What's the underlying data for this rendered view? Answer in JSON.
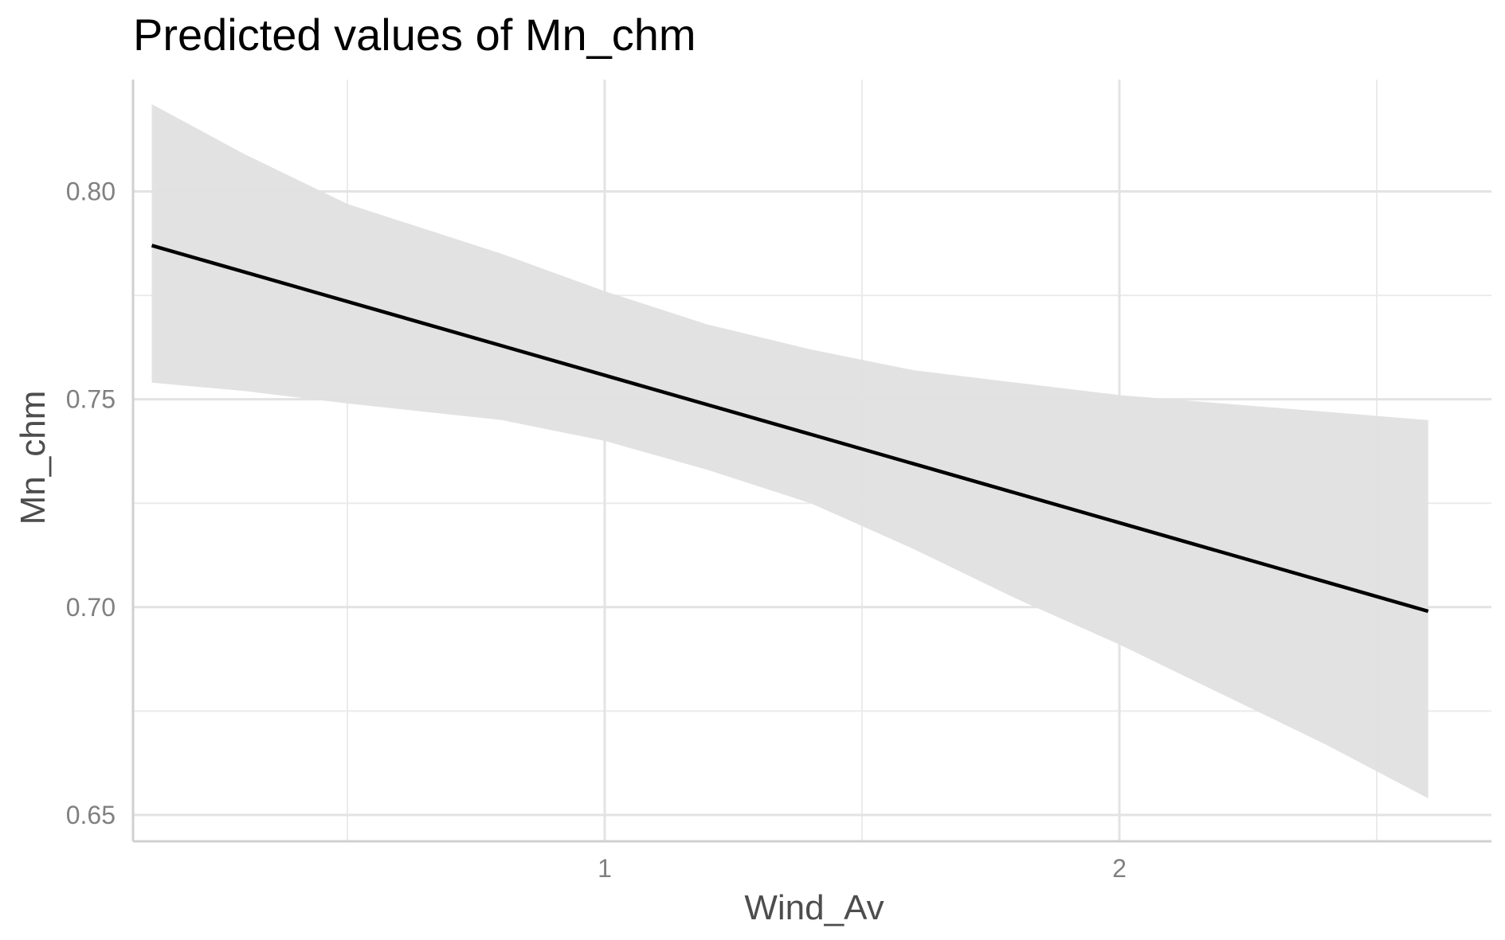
{
  "chart_data": {
    "type": "line",
    "title": "Predicted values of Mn_chm",
    "xlabel": "Wind_Av",
    "ylabel": "Mn_chm",
    "xlim": [
      0.0,
      2.7
    ],
    "ylim": [
      0.645,
      0.825
    ],
    "x_ticks": [
      {
        "value": 1,
        "label": "1"
      },
      {
        "value": 2,
        "label": "2"
      }
    ],
    "x_minor_ticks": [
      0.5,
      1.5,
      2.5
    ],
    "y_ticks": [
      {
        "value": 0.65,
        "label": "0.65"
      },
      {
        "value": 0.7,
        "label": "0.70"
      },
      {
        "value": 0.75,
        "label": "0.75"
      },
      {
        "value": 0.8,
        "label": "0.80"
      }
    ],
    "y_minor_ticks": [
      0.675,
      0.725,
      0.775
    ],
    "grid": true,
    "series": [
      {
        "x": [
          0.12,
          2.6
        ],
        "y": [
          0.787,
          0.699
        ],
        "color": "#000000"
      }
    ],
    "confidence_band": {
      "x": [
        0.12,
        0.3,
        0.5,
        0.8,
        1.0,
        1.2,
        1.4,
        1.6,
        1.8,
        2.0,
        2.2,
        2.4,
        2.6
      ],
      "upper": [
        0.821,
        0.809,
        0.797,
        0.785,
        0.776,
        0.768,
        0.762,
        0.757,
        0.754,
        0.751,
        0.749,
        0.747,
        0.745
      ],
      "lower": [
        0.754,
        0.752,
        0.749,
        0.745,
        0.74,
        0.733,
        0.725,
        0.714,
        0.702,
        0.691,
        0.679,
        0.667,
        0.654
      ],
      "color": "#e0e0e0"
    }
  }
}
